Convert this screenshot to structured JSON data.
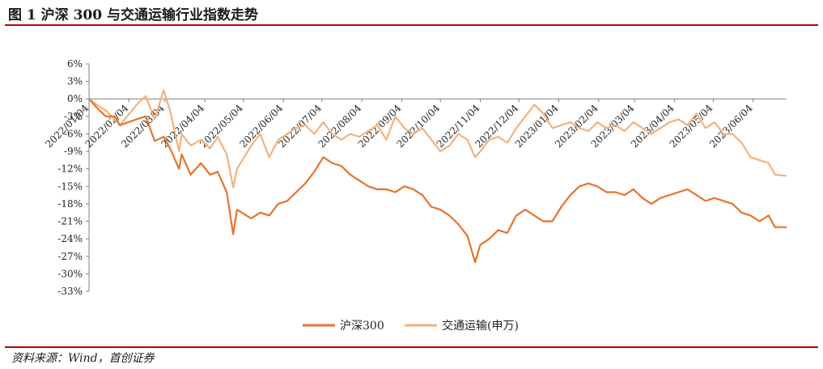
{
  "figure": {
    "title": "图 1 沪深 300 与交通运输行业指数走势",
    "source": "资料来源：Wind，首创证券"
  },
  "colors": {
    "rule": "#c00000",
    "hs300": "#e8732a",
    "transport": "#f2b27f",
    "axis": "#808080"
  },
  "chart_data": {
    "type": "line",
    "ylim": [
      -0.33,
      0.06
    ],
    "y_ticks": [
      0.06,
      0.03,
      0.0,
      -0.03,
      -0.06,
      -0.09,
      -0.12,
      -0.15,
      -0.18,
      -0.21,
      -0.24,
      -0.27,
      -0.3,
      -0.33
    ],
    "y_tick_labels": [
      "6%",
      "3%",
      "0%",
      "-3%",
      "-6%",
      "-9%",
      "-12%",
      "-15%",
      "-18%",
      "-21%",
      "-24%",
      "-27%",
      "-30%",
      "-33%"
    ],
    "x_range": [
      "2022-01-04",
      "2023-06-30"
    ],
    "x_ticks": [
      "2022-01-04",
      "2022-02-04",
      "2022-03-04",
      "2022-04-04",
      "2022-05-04",
      "2022-06-04",
      "2022-07-04",
      "2022-08-04",
      "2022-09-04",
      "2022-10-04",
      "2022-11-04",
      "2022-12-04",
      "2023-01-04",
      "2023-02-04",
      "2023-03-04",
      "2023-04-04",
      "2023-05-04",
      "2023-06-04"
    ],
    "x_tick_labels": [
      "2022/01/04",
      "2022/02/04",
      "2022/03/04",
      "2022/04/04",
      "2022/05/04",
      "2022/06/04",
      "2022/07/04",
      "2022/08/04",
      "2022/09/04",
      "2022/10/04",
      "2022/11/04",
      "2022/12/04",
      "2023/01/04",
      "2023/02/04",
      "2023/03/04",
      "2023/04/04",
      "2023/05/04",
      "2023/06/04"
    ],
    "legend_position": "bottom",
    "grid": false,
    "series": [
      {
        "name": "沪深300",
        "color": "#e8732a",
        "points": [
          [
            "2022-01-04",
            0.0
          ],
          [
            "2022-01-10",
            -0.015
          ],
          [
            "2022-01-17",
            -0.03
          ],
          [
            "2022-01-24",
            -0.03
          ],
          [
            "2022-01-28",
            -0.045
          ],
          [
            "2022-02-10",
            -0.035
          ],
          [
            "2022-02-17",
            -0.03
          ],
          [
            "2022-02-24",
            -0.072
          ],
          [
            "2022-03-03",
            -0.065
          ],
          [
            "2022-03-08",
            -0.085
          ],
          [
            "2022-03-15",
            -0.12
          ],
          [
            "2022-03-17",
            -0.095
          ],
          [
            "2022-03-24",
            -0.13
          ],
          [
            "2022-04-01",
            -0.11
          ],
          [
            "2022-04-08",
            -0.13
          ],
          [
            "2022-04-14",
            -0.125
          ],
          [
            "2022-04-21",
            -0.16
          ],
          [
            "2022-04-26",
            -0.232
          ],
          [
            "2022-04-29",
            -0.19
          ],
          [
            "2022-05-10",
            -0.205
          ],
          [
            "2022-05-17",
            -0.195
          ],
          [
            "2022-05-24",
            -0.2
          ],
          [
            "2022-05-31",
            -0.18
          ],
          [
            "2022-06-07",
            -0.175
          ],
          [
            "2022-06-14",
            -0.16
          ],
          [
            "2022-06-21",
            -0.145
          ],
          [
            "2022-06-28",
            -0.125
          ],
          [
            "2022-07-05",
            -0.1
          ],
          [
            "2022-07-12",
            -0.11
          ],
          [
            "2022-07-19",
            -0.115
          ],
          [
            "2022-07-26",
            -0.13
          ],
          [
            "2022-08-02",
            -0.14
          ],
          [
            "2022-08-09",
            -0.15
          ],
          [
            "2022-08-16",
            -0.155
          ],
          [
            "2022-08-23",
            -0.155
          ],
          [
            "2022-08-30",
            -0.16
          ],
          [
            "2022-09-06",
            -0.15
          ],
          [
            "2022-09-13",
            -0.155
          ],
          [
            "2022-09-20",
            -0.165
          ],
          [
            "2022-09-27",
            -0.185
          ],
          [
            "2022-10-04",
            -0.19
          ],
          [
            "2022-10-11",
            -0.2
          ],
          [
            "2022-10-18",
            -0.215
          ],
          [
            "2022-10-25",
            -0.235
          ],
          [
            "2022-10-31",
            -0.28
          ],
          [
            "2022-11-04",
            -0.25
          ],
          [
            "2022-11-11",
            -0.24
          ],
          [
            "2022-11-18",
            -0.225
          ],
          [
            "2022-11-25",
            -0.23
          ],
          [
            "2022-12-02",
            -0.2
          ],
          [
            "2022-12-09",
            -0.19
          ],
          [
            "2022-12-16",
            -0.2
          ],
          [
            "2022-12-23",
            -0.21
          ],
          [
            "2022-12-30",
            -0.21
          ],
          [
            "2023-01-06",
            -0.185
          ],
          [
            "2023-01-13",
            -0.165
          ],
          [
            "2023-01-20",
            -0.15
          ],
          [
            "2023-01-27",
            -0.145
          ],
          [
            "2023-02-03",
            -0.15
          ],
          [
            "2023-02-10",
            -0.16
          ],
          [
            "2023-02-17",
            -0.16
          ],
          [
            "2023-02-24",
            -0.165
          ],
          [
            "2023-03-03",
            -0.155
          ],
          [
            "2023-03-10",
            -0.17
          ],
          [
            "2023-03-17",
            -0.18
          ],
          [
            "2023-03-24",
            -0.17
          ],
          [
            "2023-03-31",
            -0.165
          ],
          [
            "2023-04-07",
            -0.16
          ],
          [
            "2023-04-14",
            -0.155
          ],
          [
            "2023-04-21",
            -0.165
          ],
          [
            "2023-04-28",
            -0.175
          ],
          [
            "2023-05-05",
            -0.17
          ],
          [
            "2023-05-12",
            -0.175
          ],
          [
            "2023-05-19",
            -0.18
          ],
          [
            "2023-05-26",
            -0.195
          ],
          [
            "2023-06-02",
            -0.2
          ],
          [
            "2023-06-09",
            -0.21
          ],
          [
            "2023-06-16",
            -0.2
          ],
          [
            "2023-06-21",
            -0.22
          ],
          [
            "2023-06-30",
            -0.22
          ]
        ]
      },
      {
        "name": "交通运输(申万)",
        "color": "#f2b27f",
        "points": [
          [
            "2022-01-04",
            0.0
          ],
          [
            "2022-01-10",
            -0.01
          ],
          [
            "2022-01-17",
            -0.02
          ],
          [
            "2022-01-24",
            -0.035
          ],
          [
            "2022-01-28",
            -0.045
          ],
          [
            "2022-02-10",
            -0.01
          ],
          [
            "2022-02-17",
            0.005
          ],
          [
            "2022-02-24",
            -0.035
          ],
          [
            "2022-03-03",
            0.015
          ],
          [
            "2022-03-08",
            -0.02
          ],
          [
            "2022-03-15",
            -0.09
          ],
          [
            "2022-03-17",
            -0.06
          ],
          [
            "2022-03-24",
            -0.08
          ],
          [
            "2022-04-01",
            -0.07
          ],
          [
            "2022-04-08",
            -0.085
          ],
          [
            "2022-04-14",
            -0.065
          ],
          [
            "2022-04-21",
            -0.095
          ],
          [
            "2022-04-26",
            -0.152
          ],
          [
            "2022-04-29",
            -0.12
          ],
          [
            "2022-05-10",
            -0.08
          ],
          [
            "2022-05-17",
            -0.06
          ],
          [
            "2022-05-24",
            -0.1
          ],
          [
            "2022-05-31",
            -0.07
          ],
          [
            "2022-06-07",
            -0.06
          ],
          [
            "2022-06-14",
            -0.05
          ],
          [
            "2022-06-21",
            -0.045
          ],
          [
            "2022-06-28",
            -0.06
          ],
          [
            "2022-07-05",
            -0.04
          ],
          [
            "2022-07-12",
            -0.06
          ],
          [
            "2022-07-19",
            -0.07
          ],
          [
            "2022-07-26",
            -0.06
          ],
          [
            "2022-08-02",
            -0.065
          ],
          [
            "2022-08-09",
            -0.055
          ],
          [
            "2022-08-16",
            -0.045
          ],
          [
            "2022-08-23",
            -0.07
          ],
          [
            "2022-08-30",
            -0.03
          ],
          [
            "2022-09-06",
            -0.05
          ],
          [
            "2022-09-13",
            -0.06
          ],
          [
            "2022-09-20",
            -0.05
          ],
          [
            "2022-09-27",
            -0.07
          ],
          [
            "2022-10-04",
            -0.09
          ],
          [
            "2022-10-11",
            -0.08
          ],
          [
            "2022-10-18",
            -0.06
          ],
          [
            "2022-10-25",
            -0.07
          ],
          [
            "2022-10-31",
            -0.1
          ],
          [
            "2022-11-04",
            -0.09
          ],
          [
            "2022-11-11",
            -0.07
          ],
          [
            "2022-11-18",
            -0.065
          ],
          [
            "2022-11-25",
            -0.075
          ],
          [
            "2022-12-02",
            -0.05
          ],
          [
            "2022-12-09",
            -0.03
          ],
          [
            "2022-12-16",
            -0.01
          ],
          [
            "2022-12-23",
            -0.025
          ],
          [
            "2022-12-30",
            -0.05
          ],
          [
            "2023-01-06",
            -0.045
          ],
          [
            "2023-01-13",
            -0.04
          ],
          [
            "2023-01-20",
            -0.05
          ],
          [
            "2023-01-27",
            -0.055
          ],
          [
            "2023-02-03",
            -0.04
          ],
          [
            "2023-02-10",
            -0.05
          ],
          [
            "2023-02-17",
            -0.045
          ],
          [
            "2023-02-24",
            -0.055
          ],
          [
            "2023-03-03",
            -0.04
          ],
          [
            "2023-03-10",
            -0.05
          ],
          [
            "2023-03-17",
            -0.06
          ],
          [
            "2023-03-24",
            -0.05
          ],
          [
            "2023-03-31",
            -0.04
          ],
          [
            "2023-04-07",
            -0.035
          ],
          [
            "2023-04-14",
            -0.045
          ],
          [
            "2023-04-21",
            -0.025
          ],
          [
            "2023-04-28",
            -0.05
          ],
          [
            "2023-05-05",
            -0.04
          ],
          [
            "2023-05-12",
            -0.06
          ],
          [
            "2023-05-19",
            -0.06
          ],
          [
            "2023-05-26",
            -0.075
          ],
          [
            "2023-06-02",
            -0.1
          ],
          [
            "2023-06-09",
            -0.105
          ],
          [
            "2023-06-16",
            -0.11
          ],
          [
            "2023-06-21",
            -0.13
          ],
          [
            "2023-06-30",
            -0.132
          ]
        ]
      }
    ]
  }
}
